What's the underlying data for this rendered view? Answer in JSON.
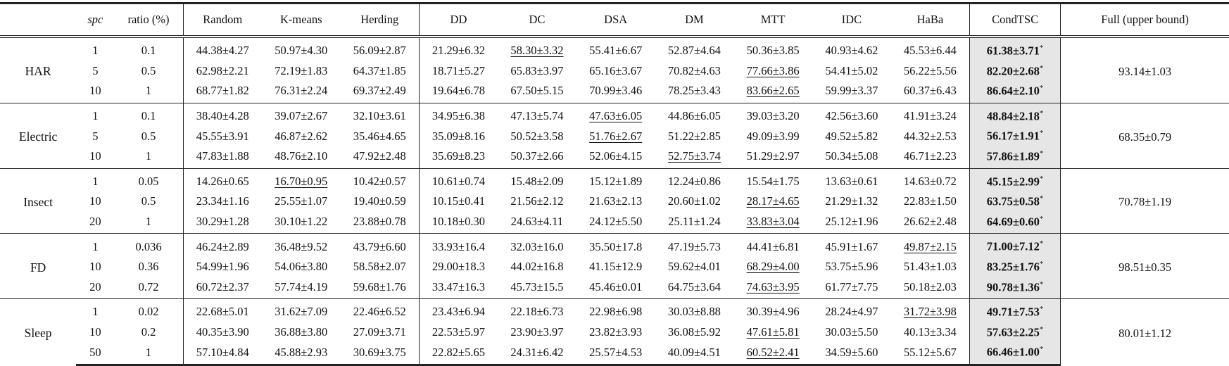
{
  "headers": {
    "dataset": "",
    "spc": "spc",
    "ratio": "ratio (%)",
    "methods": [
      "Random",
      "K-means",
      "Herding",
      "DD",
      "DC",
      "DSA",
      "DM",
      "MTT",
      "IDC",
      "HaBa"
    ],
    "ours": "CondTSC",
    "full": "Full (upper bound)"
  },
  "significance_mark": "*",
  "groups": [
    {
      "dataset": "HAR",
      "full": "93.14±1.03",
      "rows": [
        {
          "spc": "1",
          "ratio": "0.1",
          "values": [
            "44.38±4.27",
            "50.97±4.30",
            "56.09±2.87",
            "21.29±6.32",
            "58.30±3.32",
            "55.41±6.67",
            "52.87±4.64",
            "50.36±3.85",
            "40.93±4.62",
            "45.53±6.44"
          ],
          "underline": 4,
          "ours": "61.38±3.71"
        },
        {
          "spc": "5",
          "ratio": "0.5",
          "values": [
            "62.98±2.21",
            "72.19±1.83",
            "64.37±1.85",
            "18.71±5.27",
            "65.83±3.97",
            "65.16±3.67",
            "70.82±4.63",
            "77.66±3.86",
            "54.41±5.02",
            "56.22±5.56"
          ],
          "underline": 7,
          "ours": "82.20±2.68"
        },
        {
          "spc": "10",
          "ratio": "1",
          "values": [
            "68.77±1.82",
            "76.31±2.24",
            "69.37±2.49",
            "19.64±6.78",
            "67.50±5.15",
            "70.99±3.46",
            "78.25±3.43",
            "83.66±2.65",
            "59.99±3.37",
            "60.37±6.43"
          ],
          "underline": 7,
          "ours": "86.64±2.10"
        }
      ]
    },
    {
      "dataset": "Electric",
      "full": "68.35±0.79",
      "rows": [
        {
          "spc": "1",
          "ratio": "0.1",
          "values": [
            "38.40±4.28",
            "39.07±2.67",
            "32.10±3.61",
            "34.95±6.38",
            "47.13±5.74",
            "47.63±6.05",
            "44.86±6.05",
            "39.03±3.20",
            "42.56±3.60",
            "41.91±3.24"
          ],
          "underline": 5,
          "ours": "48.84±2.18"
        },
        {
          "spc": "5",
          "ratio": "0.5",
          "values": [
            "45.55±3.91",
            "46.87±2.62",
            "35.46±4.65",
            "35.09±8.16",
            "50.52±3.58",
            "51.76±2.67",
            "51.22±2.85",
            "49.09±3.99",
            "49.52±5.82",
            "44.32±2.53"
          ],
          "underline": 5,
          "ours": "56.17±1.91"
        },
        {
          "spc": "10",
          "ratio": "1",
          "values": [
            "47.83±1.88",
            "48.76±2.10",
            "47.92±2.48",
            "35.69±8.23",
            "50.37±2.66",
            "52.06±4.15",
            "52.75±3.74",
            "51.29±2.97",
            "50.34±5.08",
            "46.71±2.23"
          ],
          "underline": 6,
          "ours": "57.86±1.89"
        }
      ]
    },
    {
      "dataset": "Insect",
      "full": "70.78±1.19",
      "rows": [
        {
          "spc": "1",
          "ratio": "0.05",
          "values": [
            "14.26±0.65",
            "16.70±0.95",
            "10.42±0.57",
            "10.61±0.74",
            "15.48±2.09",
            "15.12±1.89",
            "12.24±0.86",
            "15.54±1.75",
            "13.63±0.61",
            "14.63±0.72"
          ],
          "underline": 1,
          "ours": "45.15±2.99"
        },
        {
          "spc": "10",
          "ratio": "0.5",
          "values": [
            "23.34±1.16",
            "25.55±1.07",
            "19.40±0.59",
            "10.15±0.41",
            "21.56±2.12",
            "21.63±2.13",
            "20.60±1.02",
            "28.17±4.65",
            "21.29±1.32",
            "22.83±1.50"
          ],
          "underline": 7,
          "ours": "63.75±0.58"
        },
        {
          "spc": "20",
          "ratio": "1",
          "values": [
            "30.29±1.28",
            "30.10±1.22",
            "23.88±0.78",
            "10.18±0.30",
            "24.63±4.11",
            "24.12±5.50",
            "25.11±1.24",
            "33.83±3.04",
            "25.12±1.96",
            "26.62±2.48"
          ],
          "underline": 7,
          "ours": "64.69±0.60"
        }
      ]
    },
    {
      "dataset": "FD",
      "full": "98.51±0.35",
      "rows": [
        {
          "spc": "1",
          "ratio": "0.036",
          "values": [
            "46.24±2.89",
            "36.48±9.52",
            "43.79±6.60",
            "33.93±16.4",
            "32.03±16.0",
            "35.50±17.8",
            "47.19±5.73",
            "44.41±6.81",
            "45.91±1.67",
            "49.87±2.15"
          ],
          "underline": 9,
          "ours": "71.00±7.12"
        },
        {
          "spc": "10",
          "ratio": "0.36",
          "values": [
            "54.99±1.96",
            "54.06±3.80",
            "58.58±2.07",
            "29.00±18.3",
            "44.02±16.8",
            "41.15±12.9",
            "59.62±4.01",
            "68.29±4.00",
            "53.75±5.96",
            "51.43±1.03"
          ],
          "underline": 7,
          "ours": "83.25±1.76"
        },
        {
          "spc": "20",
          "ratio": "0.72",
          "values": [
            "60.72±2.37",
            "57.74±4.19",
            "59.68±1.76",
            "33.47±16.3",
            "45.73±15.5",
            "45.46±0.01",
            "64.75±3.64",
            "74.63±3.95",
            "61.77±7.75",
            "50.18±2.03"
          ],
          "underline": 7,
          "ours": "90.78±1.36"
        }
      ]
    },
    {
      "dataset": "Sleep",
      "full": "80.01±1.12",
      "rows": [
        {
          "spc": "1",
          "ratio": "0.02",
          "values": [
            "22.68±5.01",
            "31.62±7.09",
            "22.46±6.52",
            "23.43±6.94",
            "22.18±6.73",
            "22.98±6.98",
            "30.03±8.88",
            "30.39±4.96",
            "28.24±4.97",
            "31.72±3.98"
          ],
          "underline": 9,
          "ours": "49.71±7.53"
        },
        {
          "spc": "10",
          "ratio": "0.2",
          "values": [
            "40.35±3.90",
            "36.88±3.80",
            "27.09±3.71",
            "22.53±5.97",
            "23.90±3.97",
            "23.82±3.93",
            "36.08±5.92",
            "47.61±5.81",
            "30.03±5.50",
            "40.13±3.34"
          ],
          "underline": 7,
          "ours": "57.63±2.25"
        },
        {
          "spc": "50",
          "ratio": "1",
          "values": [
            "57.10±4.84",
            "45.88±2.93",
            "30.69±3.75",
            "22.82±5.65",
            "24.31±6.42",
            "25.57±4.53",
            "40.09±4.51",
            "60.52±2.41",
            "34.59±5.60",
            "55.12±5.67"
          ],
          "underline": 7,
          "ours": "66.46±1.00"
        }
      ]
    }
  ]
}
